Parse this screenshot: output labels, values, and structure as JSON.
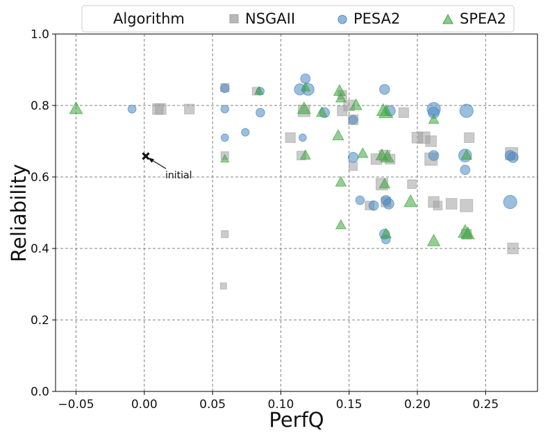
{
  "chart_data": {
    "type": "scatter",
    "title": "",
    "xlabel": "PerfQ",
    "ylabel": "Reliability",
    "xlim": [
      -0.065,
      0.288
    ],
    "ylim": [
      0.0,
      1.0
    ],
    "x_ticks": [
      -0.05,
      0.0,
      0.05,
      0.1,
      0.15,
      0.2,
      0.25
    ],
    "x_tick_labels": [
      "−0.05",
      "0.00",
      "0.05",
      "0.10",
      "0.15",
      "0.20",
      "0.25"
    ],
    "y_ticks": [
      0.0,
      0.2,
      0.4,
      0.6,
      0.8,
      1.0
    ],
    "y_tick_labels": [
      "0.0",
      "0.2",
      "0.4",
      "0.6",
      "0.8",
      "1.0"
    ],
    "grid": true,
    "legend": {
      "placement": "top",
      "title": "Algorithm",
      "entries": [
        "NSGAII",
        "PESA2",
        "SPEA2"
      ]
    },
    "annotation": {
      "text": "initial",
      "x": 0.0,
      "y": 0.66
    },
    "series": [
      {
        "name": "NSGAII",
        "marker": "square",
        "color": "#a0a0a0",
        "points": [
          {
            "x": 0.01,
            "y": 0.79,
            "s": 3
          },
          {
            "x": 0.012,
            "y": 0.79,
            "s": 3
          },
          {
            "x": 0.033,
            "y": 0.79,
            "s": 2.5
          },
          {
            "x": 0.059,
            "y": 0.85,
            "s": 1.8
          },
          {
            "x": 0.059,
            "y": 0.66,
            "s": 1.5
          },
          {
            "x": 0.059,
            "y": 0.44,
            "s": 1.3
          },
          {
            "x": 0.058,
            "y": 0.295,
            "s": 1
          },
          {
            "x": 0.082,
            "y": 0.84,
            "s": 1.6
          },
          {
            "x": 0.107,
            "y": 0.71,
            "s": 2.5
          },
          {
            "x": 0.117,
            "y": 0.785,
            "s": 3.5
          },
          {
            "x": 0.115,
            "y": 0.66,
            "s": 2
          },
          {
            "x": 0.145,
            "y": 0.785,
            "s": 2.5
          },
          {
            "x": 0.15,
            "y": 0.8,
            "s": 3
          },
          {
            "x": 0.153,
            "y": 0.76,
            "s": 2.5
          },
          {
            "x": 0.145,
            "y": 0.83,
            "s": 2
          },
          {
            "x": 0.153,
            "y": 0.63,
            "s": 1.8
          },
          {
            "x": 0.17,
            "y": 0.65,
            "s": 3
          },
          {
            "x": 0.174,
            "y": 0.58,
            "s": 3.5
          },
          {
            "x": 0.176,
            "y": 0.66,
            "s": 3
          },
          {
            "x": 0.18,
            "y": 0.65,
            "s": 2.5
          },
          {
            "x": 0.19,
            "y": 0.78,
            "s": 2.5
          },
          {
            "x": 0.196,
            "y": 0.58,
            "s": 2
          },
          {
            "x": 0.2,
            "y": 0.71,
            "s": 3
          },
          {
            "x": 0.205,
            "y": 0.71,
            "s": 3.5
          },
          {
            "x": 0.21,
            "y": 0.7,
            "s": 3
          },
          {
            "x": 0.21,
            "y": 0.65,
            "s": 4
          },
          {
            "x": 0.212,
            "y": 0.53,
            "s": 3
          },
          {
            "x": 0.215,
            "y": 0.52,
            "s": 2
          },
          {
            "x": 0.225,
            "y": 0.525,
            "s": 3
          },
          {
            "x": 0.236,
            "y": 0.52,
            "s": 4
          },
          {
            "x": 0.238,
            "y": 0.71,
            "s": 2.5
          },
          {
            "x": 0.236,
            "y": 0.44,
            "s": 2.5
          },
          {
            "x": 0.269,
            "y": 0.665,
            "s": 4
          },
          {
            "x": 0.27,
            "y": 0.4,
            "s": 3
          },
          {
            "x": 0.177,
            "y": 0.53,
            "s": 2.5
          },
          {
            "x": 0.165,
            "y": 0.52,
            "s": 2
          }
        ]
      },
      {
        "name": "PESA2",
        "marker": "circle",
        "color": "#4a89c1",
        "points": [
          {
            "x": -0.009,
            "y": 0.79,
            "s": 1.3
          },
          {
            "x": 0.059,
            "y": 0.848,
            "s": 1.5
          },
          {
            "x": 0.059,
            "y": 0.79,
            "s": 1.2
          },
          {
            "x": 0.059,
            "y": 0.71,
            "s": 1.1
          },
          {
            "x": 0.074,
            "y": 0.725,
            "s": 1.2
          },
          {
            "x": 0.085,
            "y": 0.78,
            "s": 1.5
          },
          {
            "x": 0.085,
            "y": 0.84,
            "s": 1.2
          },
          {
            "x": 0.116,
            "y": 0.71,
            "s": 1.1
          },
          {
            "x": 0.114,
            "y": 0.845,
            "s": 2.5
          },
          {
            "x": 0.118,
            "y": 0.875,
            "s": 1.8
          },
          {
            "x": 0.12,
            "y": 0.845,
            "s": 2.8
          },
          {
            "x": 0.132,
            "y": 0.78,
            "s": 2
          },
          {
            "x": 0.153,
            "y": 0.76,
            "s": 1.5
          },
          {
            "x": 0.153,
            "y": 0.655,
            "s": 2
          },
          {
            "x": 0.158,
            "y": 0.535,
            "s": 1.5
          },
          {
            "x": 0.168,
            "y": 0.52,
            "s": 1.8
          },
          {
            "x": 0.176,
            "y": 0.845,
            "s": 2
          },
          {
            "x": 0.18,
            "y": 0.785,
            "s": 2.2
          },
          {
            "x": 0.176,
            "y": 0.44,
            "s": 2
          },
          {
            "x": 0.177,
            "y": 0.425,
            "s": 1.5
          },
          {
            "x": 0.177,
            "y": 0.535,
            "s": 1.8
          },
          {
            "x": 0.179,
            "y": 0.525,
            "s": 2.2
          },
          {
            "x": 0.212,
            "y": 0.79,
            "s": 3.5
          },
          {
            "x": 0.212,
            "y": 0.78,
            "s": 2.5
          },
          {
            "x": 0.212,
            "y": 0.66,
            "s": 2
          },
          {
            "x": 0.236,
            "y": 0.785,
            "s": 3.5
          },
          {
            "x": 0.235,
            "y": 0.66,
            "s": 3.3
          },
          {
            "x": 0.235,
            "y": 0.62,
            "s": 1.8
          },
          {
            "x": 0.268,
            "y": 0.66,
            "s": 2
          },
          {
            "x": 0.27,
            "y": 0.655,
            "s": 2.2
          },
          {
            "x": 0.268,
            "y": 0.53,
            "s": 3.5
          }
        ]
      },
      {
        "name": "SPEA2",
        "marker": "triangle",
        "color": "#3ea53e",
        "points": [
          {
            "x": -0.05,
            "y": 0.79,
            "s": 3
          },
          {
            "x": 0.059,
            "y": 0.65,
            "s": 1.2
          },
          {
            "x": 0.084,
            "y": 0.84,
            "s": 1.3
          },
          {
            "x": 0.118,
            "y": 0.85,
            "s": 1.5
          },
          {
            "x": 0.117,
            "y": 0.79,
            "s": 3
          },
          {
            "x": 0.118,
            "y": 0.66,
            "s": 1.8
          },
          {
            "x": 0.13,
            "y": 0.78,
            "s": 2
          },
          {
            "x": 0.143,
            "y": 0.84,
            "s": 2.5
          },
          {
            "x": 0.144,
            "y": 0.82,
            "s": 1.8
          },
          {
            "x": 0.142,
            "y": 0.715,
            "s": 2.2
          },
          {
            "x": 0.144,
            "y": 0.585,
            "s": 2
          },
          {
            "x": 0.144,
            "y": 0.465,
            "s": 1.8
          },
          {
            "x": 0.155,
            "y": 0.8,
            "s": 2.5
          },
          {
            "x": 0.16,
            "y": 0.665,
            "s": 2
          },
          {
            "x": 0.175,
            "y": 0.785,
            "s": 3
          },
          {
            "x": 0.177,
            "y": 0.78,
            "s": 3.5
          },
          {
            "x": 0.174,
            "y": 0.66,
            "s": 2.5
          },
          {
            "x": 0.178,
            "y": 0.655,
            "s": 3
          },
          {
            "x": 0.176,
            "y": 0.58,
            "s": 2
          },
          {
            "x": 0.177,
            "y": 0.44,
            "s": 2
          },
          {
            "x": 0.195,
            "y": 0.53,
            "s": 3
          },
          {
            "x": 0.212,
            "y": 0.76,
            "s": 1.8
          },
          {
            "x": 0.212,
            "y": 0.42,
            "s": 2.8
          },
          {
            "x": 0.236,
            "y": 0.66,
            "s": 2
          },
          {
            "x": 0.235,
            "y": 0.445,
            "s": 3.5
          },
          {
            "x": 0.237,
            "y": 0.44,
            "s": 3
          }
        ]
      }
    ]
  }
}
